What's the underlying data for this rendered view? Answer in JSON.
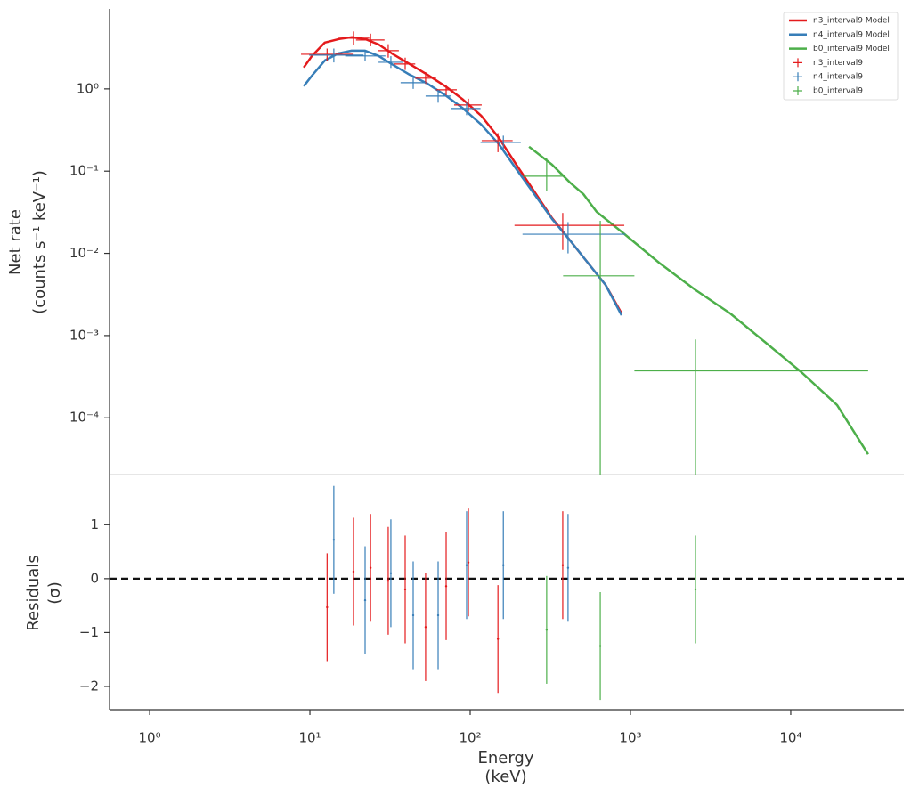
{
  "chart_data": [
    {
      "type": "line",
      "xscale": "log",
      "yscale": "log",
      "ylabel": [
        "Net rate",
        "(counts s⁻¹ keV⁻¹)"
      ],
      "xlim": [
        0.562,
        50800
      ],
      "ylim": [
        2.04e-05,
        9.4
      ],
      "yticks": [
        {
          "value": 0.0001,
          "label": "10⁻⁴"
        },
        {
          "value": 0.001,
          "label": "10⁻³"
        },
        {
          "value": 0.01,
          "label": "10⁻²"
        },
        {
          "value": 0.1,
          "label": "10⁻¹"
        },
        {
          "value": 1,
          "label": "10⁰"
        }
      ],
      "legend": "upper right",
      "series": [
        {
          "name": "n3_interval9 Model",
          "type": "line",
          "color": "#e41a1c",
          "x": [
            9.15,
            10.3,
            12.4,
            15.1,
            18.2,
            22.1,
            26.8,
            32.4,
            41.9,
            54.1,
            69.9,
            90.3,
            117,
            151,
            194,
            251,
            324,
            419,
            541,
            699,
            880
          ],
          "values": [
            1.82,
            2.52,
            3.66,
            4.04,
            4.25,
            4.04,
            3.48,
            2.71,
            2.01,
            1.49,
            1.08,
            0.741,
            0.473,
            0.254,
            0.12,
            0.0568,
            0.0269,
            0.0144,
            0.0077,
            0.00413,
            0.00186
          ]
        },
        {
          "name": "n4_interval9 Model",
          "type": "line",
          "color": "#377eb8",
          "x": [
            9.15,
            10.3,
            12.4,
            15.1,
            18.2,
            22.1,
            26.8,
            32.4,
            41.9,
            54.1,
            69.9,
            90.3,
            117,
            151,
            194,
            251,
            324,
            419,
            541,
            699,
            880
          ],
          "values": [
            1.08,
            1.45,
            2.22,
            2.71,
            2.92,
            2.92,
            2.52,
            2.01,
            1.49,
            1.16,
            0.84,
            0.578,
            0.369,
            0.213,
            0.106,
            0.0527,
            0.0262,
            0.0144,
            0.0077,
            0.00413,
            0.00177
          ]
        },
        {
          "name": "b0_interval9 Model",
          "type": "line",
          "color": "#4daf4a",
          "x": [
            233,
            324,
            419,
            508,
            615,
            903,
            1506,
            2512,
            4190,
            6990,
            11650,
            19450,
            30400
          ],
          "values": [
            0.198,
            0.12,
            0.0728,
            0.0527,
            0.032,
            0.0176,
            0.0077,
            0.00365,
            0.00186,
            0.000817,
            0.000359,
            0.000143,
            3.6e-05
          ]
        },
        {
          "name": "n3_interval9",
          "type": "errorbar",
          "color": "#e41a1c",
          "x": [
            12.8,
            18.7,
            23.9,
            30.8,
            39.3,
            52.7,
            70.8,
            97.5,
            149,
            378
          ],
          "values": [
            2.64,
            4.14,
            3.94,
            2.92,
            2.01,
            1.35,
            0.975,
            0.638,
            0.235,
            0.0219
          ],
          "x_lo": [
            8.8,
            15.1,
            19.4,
            26.5,
            33.7,
            45.4,
            61.3,
            79.4,
            118,
            189
          ],
          "x_hi": [
            18.5,
            23.5,
            29.2,
            35.9,
            45.4,
            61.3,
            82.5,
            118,
            184,
            915
          ],
          "y_lo": [
            2.2,
            3.4,
            3.3,
            2.4,
            1.7,
            1.15,
            0.84,
            0.53,
            0.17,
            0.011
          ],
          "y_hi": [
            3.1,
            5.0,
            4.7,
            3.5,
            2.4,
            1.6,
            1.13,
            0.76,
            0.29,
            0.031
          ]
        },
        {
          "name": "n4_interval9",
          "type": "errorbar",
          "color": "#377eb8",
          "x": [
            14.1,
            22.1,
            32,
            44.1,
            63.1,
            95,
            161,
            408
          ],
          "values": [
            2.58,
            2.52,
            2.11,
            1.19,
            0.819,
            0.578,
            0.224,
            0.0171
          ],
          "x_lo": [
            9.9,
            16.6,
            26.8,
            36.8,
            52.7,
            75.6,
            116,
            212
          ],
          "x_hi": [
            21.6,
            29.6,
            38.3,
            52.7,
            75.6,
            116,
            207,
            930
          ],
          "y_lo": [
            2.1,
            2.2,
            1.8,
            1.0,
            0.68,
            0.48,
            0.18,
            0.01
          ],
          "y_hi": [
            3.1,
            2.9,
            2.5,
            1.4,
            0.97,
            0.68,
            0.27,
            0.024
          ]
        },
        {
          "name": "b0_interval9",
          "type": "errorbar",
          "color": "#4daf4a",
          "x": [
            300,
            648,
            2545
          ],
          "values": [
            0.0868,
            0.00533,
            0.000372
          ],
          "x_lo": [
            215,
            380,
            1058
          ],
          "x_hi": [
            388,
            1058,
            30400
          ],
          "y_lo": [
            0.0569,
            2.04e-05,
            2.04e-05
          ],
          "y_hi": [
            0.143,
            0.0249,
            0.000896
          ]
        }
      ]
    },
    {
      "type": "errorbar",
      "xscale": "log",
      "xlabel": [
        "Energy",
        "(keV)"
      ],
      "ylabel": [
        "Residuals",
        "(σ)"
      ],
      "xlim": [
        0.562,
        50800
      ],
      "ylim": [
        -2.43,
        1.93
      ],
      "xticks": [
        {
          "value": 1,
          "label": "10⁰"
        },
        {
          "value": 10,
          "label": "10¹"
        },
        {
          "value": 100,
          "label": "10²"
        },
        {
          "value": 1000,
          "label": "10³"
        },
        {
          "value": 10000,
          "label": "10⁴"
        }
      ],
      "yticks": [
        1,
        0,
        {
          "value": -1,
          "label": "−1"
        },
        {
          "value": -2,
          "label": "−2"
        }
      ],
      "hline": 0,
      "series": [
        {
          "color": "#e41a1c",
          "x": [
            12.8,
            18.7,
            23.9,
            30.8,
            39.3,
            52.7,
            70.8,
            97.5,
            149,
            378
          ],
          "values": [
            -0.53,
            0.13,
            0.2,
            -0.04,
            -0.2,
            -0.9,
            -0.14,
            0.3,
            -1.12,
            0.25
          ],
          "errors": [
            1,
            1,
            1,
            1,
            1,
            1,
            1,
            1,
            1,
            1
          ]
        },
        {
          "color": "#377eb8",
          "x": [
            14.1,
            22.1,
            32,
            44.1,
            63.1,
            95,
            161,
            408
          ],
          "values": [
            0.72,
            -0.4,
            0.1,
            -0.68,
            -0.68,
            0.25,
            0.25,
            0.2
          ],
          "errors": [
            1,
            1,
            1,
            1,
            1,
            1,
            1,
            1
          ]
        },
        {
          "color": "#4daf4a",
          "x": [
            300,
            648,
            2545
          ],
          "values": [
            -0.95,
            -1.25,
            -0.2
          ],
          "errors": [
            1,
            1,
            1
          ]
        }
      ]
    }
  ]
}
